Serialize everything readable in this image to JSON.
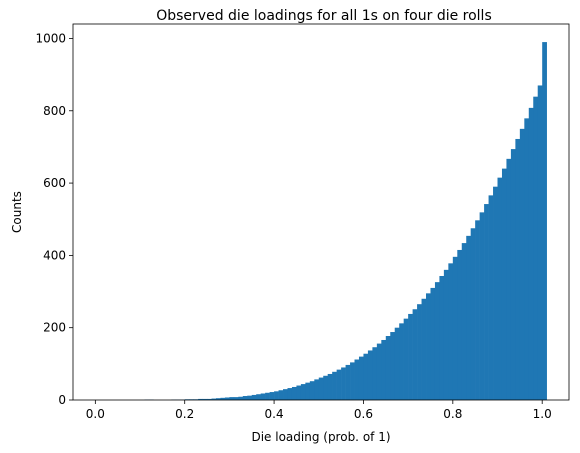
{
  "chart_data": {
    "type": "bar",
    "title": "Observed die loadings for all 1s on four die rolls",
    "xlabel": "Die loading (prob. of 1)",
    "ylabel": "Counts",
    "xlim": [
      -0.05,
      1.06
    ],
    "ylim": [
      0,
      1040
    ],
    "xticks": [
      0.0,
      0.2,
      0.4,
      0.6,
      0.8,
      1.0
    ],
    "xtick_labels": [
      "0.0",
      "0.2",
      "0.4",
      "0.6",
      "0.8",
      "1.0"
    ],
    "yticks": [
      0,
      200,
      400,
      600,
      800,
      1000
    ],
    "ytick_labels": [
      "0",
      "200",
      "400",
      "600",
      "800",
      "1000"
    ],
    "bin_start": 0.0,
    "bin_width": 0.01,
    "values": [
      0,
      0,
      0,
      0,
      0,
      0,
      0,
      0,
      0,
      0,
      0,
      1,
      1,
      0,
      0,
      0,
      0,
      1,
      1,
      1,
      2,
      2,
      2,
      3,
      3,
      3,
      4,
      5,
      6,
      7,
      8,
      8,
      9,
      11,
      12,
      14,
      16,
      18,
      20,
      22,
      24,
      27,
      30,
      33,
      36,
      40,
      44,
      48,
      52,
      57,
      62,
      67,
      72,
      78,
      84,
      90,
      97,
      104,
      112,
      120,
      128,
      137,
      146,
      156,
      166,
      177,
      188,
      200,
      212,
      225,
      238,
      251,
      265,
      280,
      295,
      310,
      326,
      343,
      360,
      378,
      396,
      415,
      434,
      454,
      475,
      497,
      519,
      542,
      566,
      590,
      615,
      640,
      667,
      694,
      722,
      750,
      779,
      808,
      839,
      870,
      990
    ],
    "color": "#1f77b4",
    "grid": false,
    "legend": "none"
  }
}
